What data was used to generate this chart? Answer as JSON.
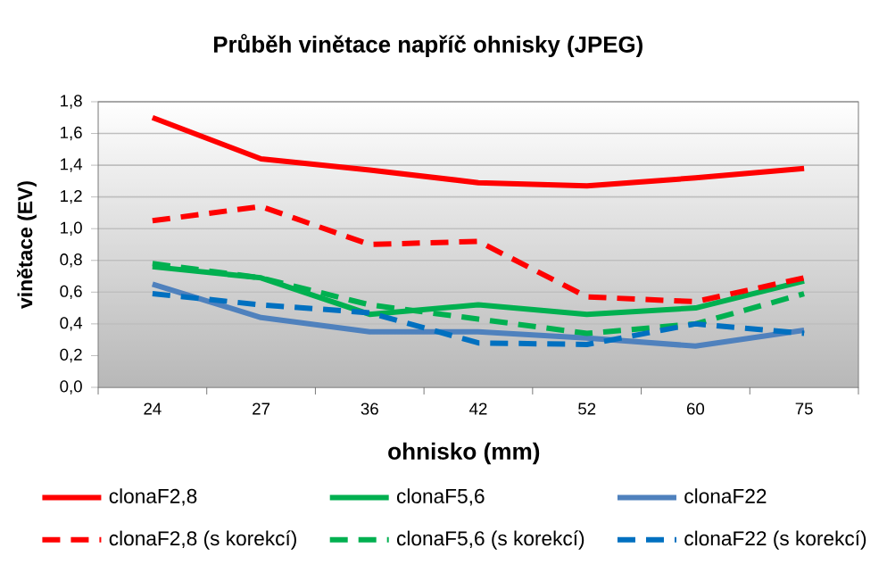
{
  "chart_data": {
    "type": "line",
    "title": "Průběh vinětace napříč ohnisky (JPEG)",
    "xlabel": "ohnisko (mm)",
    "ylabel": "vinětace (EV)",
    "categories": [
      "24",
      "27",
      "36",
      "42",
      "52",
      "60",
      "75"
    ],
    "ylim": [
      0,
      1.8
    ],
    "yticks": [
      {
        "value": 0,
        "label": "0,0"
      },
      {
        "value": 0.2,
        "label": "0,2"
      },
      {
        "value": 0.4,
        "label": "0,4"
      },
      {
        "value": 0.6,
        "label": "0,6"
      },
      {
        "value": 0.8,
        "label": "0,8"
      },
      {
        "value": 1.0,
        "label": "1,0"
      },
      {
        "value": 1.2,
        "label": "1,2"
      },
      {
        "value": 1.4,
        "label": "1,4"
      },
      {
        "value": 1.6,
        "label": "1,6"
      },
      {
        "value": 1.8,
        "label": "1,8"
      }
    ],
    "grid": "y",
    "legend": "bottom",
    "marker": "none",
    "series": [
      {
        "name": "clonaF2,8",
        "color": "#ff0000",
        "line_style": "solid",
        "values": [
          1.7,
          1.44,
          1.37,
          1.29,
          1.27,
          1.32,
          1.38
        ]
      },
      {
        "name": "clonaF5,6",
        "color": "#00b050",
        "line_style": "solid",
        "values": [
          0.76,
          0.69,
          0.46,
          0.52,
          0.46,
          0.5,
          0.67
        ]
      },
      {
        "name": "clonaF22",
        "color": "#4f81bd",
        "line_style": "solid",
        "values": [
          0.65,
          0.44,
          0.35,
          0.35,
          0.31,
          0.26,
          0.36
        ]
      },
      {
        "name": "clonaF2,8 (s korekcí)",
        "color": "#ff0000",
        "line_style": "dashed",
        "values": [
          1.05,
          1.14,
          0.9,
          0.92,
          0.57,
          0.54,
          0.69
        ]
      },
      {
        "name": "clonaF5,6 (s korekcí)",
        "color": "#00b050",
        "line_style": "dashed",
        "values": [
          0.78,
          0.69,
          0.52,
          0.43,
          0.34,
          0.4,
          0.59
        ]
      },
      {
        "name": "clonaF22 (s korekcí)",
        "color": "#0070c0",
        "line_style": "dashed",
        "values": [
          0.59,
          0.52,
          0.47,
          0.28,
          0.27,
          0.4,
          0.34
        ]
      }
    ]
  }
}
